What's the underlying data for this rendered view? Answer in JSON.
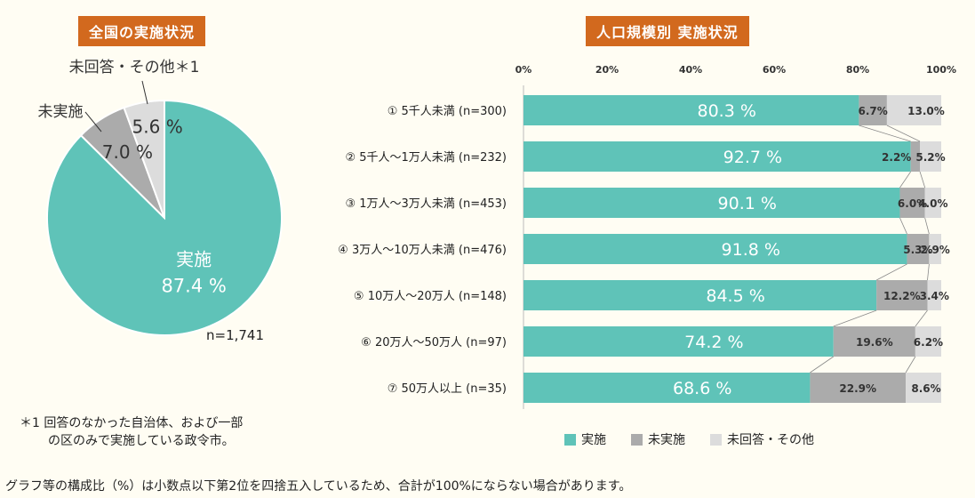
{
  "left_title": "全国の実施状況",
  "right_title": "人口規模別 実施状況",
  "pie_n": "n=1,741",
  "footnote": {
    "line1": "＊1  回答のなかった自治体、および一部",
    "line2": "の区のみで実施している政令市。"
  },
  "bottom_note": "グラフ等の構成比（%）は小数点以下第2位を四捨五入しているため、合計が100%にならない場合があります。",
  "colors": {
    "implemented": "#5FC3B8",
    "not_implemented": "#ABABAB",
    "no_answer": "#DCDCDC"
  },
  "chart_data": [
    {
      "type": "pie",
      "title": "全国の実施状況",
      "slices": [
        {
          "label": "実施",
          "value": 87.4,
          "display": "87.4 %"
        },
        {
          "label": "未実施",
          "value": 7.0,
          "display": "7.0 %"
        },
        {
          "label": "未回答・その他＊1",
          "value": 5.6,
          "display": "5.6 %"
        }
      ]
    },
    {
      "type": "bar",
      "orientation": "horizontal",
      "stacked": true,
      "title": "人口規模別 実施状況",
      "xlim": [
        0,
        100
      ],
      "x_ticks": [
        "0%",
        "20%",
        "40%",
        "60%",
        "80%",
        "100%"
      ],
      "categories": [
        "① 5千人未満 (n=300)",
        "② 5千人～1万人未満 (n=232)",
        "③ 1万人～3万人未満 (n=453)",
        "④ 3万人～10万人未満 (n=476)",
        "⑤ 10万人～20万人 (n=148)",
        "⑥ 20万人～50万人 (n=97)",
        "⑦ 50万人以上 (n=35)"
      ],
      "series": [
        {
          "name": "実施",
          "values": [
            80.3,
            92.7,
            90.1,
            91.8,
            84.5,
            74.2,
            68.6
          ],
          "labels": [
            "80.3 %",
            "92.7 %",
            "90.1 %",
            "91.8 %",
            "84.5 %",
            "74.2 %",
            "68.6 %"
          ]
        },
        {
          "name": "未実施",
          "values": [
            6.7,
            2.2,
            6.0,
            5.3,
            12.2,
            19.6,
            22.9
          ],
          "labels": [
            "6.7%",
            "2.2%",
            "6.0%",
            "5.3%",
            "12.2%",
            "19.6%",
            "22.9%"
          ]
        },
        {
          "name": "未回答・その他",
          "values": [
            13.0,
            5.2,
            4.0,
            2.9,
            3.4,
            6.2,
            8.6
          ],
          "labels": [
            "13.0%",
            "5.2%",
            "4.0%",
            "2.9%",
            "3.4%",
            "6.2%",
            "8.6%"
          ]
        }
      ],
      "legend": "bottom"
    }
  ]
}
